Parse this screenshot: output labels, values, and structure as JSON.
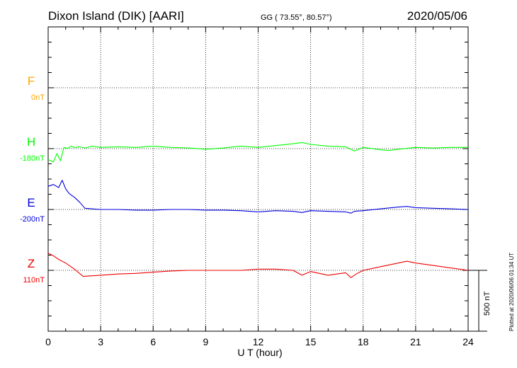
{
  "header": {
    "station": "Dixon Island (DIK)  [AARI]",
    "coords": "GG ( 73.55°,  80.57°)",
    "date": "2020/05/06"
  },
  "side_note": "Plotted at 2020/06/06 01:34 UT",
  "scale_bar_label": "500 nT",
  "chart_data": {
    "type": "line",
    "xlabel": "U T (hour)",
    "ylabel": "",
    "xlim": [
      0,
      24
    ],
    "x_ticks": [
      0,
      3,
      6,
      9,
      12,
      15,
      18,
      21,
      24
    ],
    "x_tick_labels": [
      "0",
      "3",
      "6",
      "9",
      "12",
      "15",
      "18",
      "21",
      "24"
    ],
    "grid": true,
    "scale_nT": 500,
    "series": [
      {
        "name": "F",
        "baseline_label": "0nT",
        "color": "#ffa500",
        "x": [],
        "y": []
      },
      {
        "name": "H",
        "baseline_label": "-180nT",
        "color": "#00ff00",
        "x": [
          0,
          0.3,
          0.5,
          0.7,
          0.9,
          1.1,
          1.3,
          1.5,
          1.8,
          2.1,
          2.5,
          3,
          4,
          5,
          6,
          7,
          8,
          9,
          10,
          11,
          12,
          13,
          14,
          14.5,
          15,
          16,
          17,
          17.5,
          18,
          19,
          19.5,
          20,
          21,
          22,
          23,
          24
        ],
        "y": [
          -90,
          -110,
          -40,
          -100,
          10,
          0,
          20,
          10,
          15,
          5,
          20,
          10,
          15,
          10,
          20,
          10,
          5,
          -5,
          5,
          20,
          10,
          25,
          40,
          50,
          35,
          20,
          15,
          -20,
          10,
          -10,
          -15,
          -5,
          10,
          5,
          10,
          10
        ]
      },
      {
        "name": "E",
        "baseline_label": "-200nT",
        "color": "#0000dd",
        "x": [
          0,
          0.3,
          0.6,
          0.8,
          1.0,
          1.2,
          1.5,
          1.8,
          2.1,
          2.5,
          3,
          4,
          5,
          6,
          7,
          8,
          9,
          10,
          11,
          12,
          13,
          14,
          14.5,
          15,
          16,
          17,
          17.3,
          17.5,
          18,
          19,
          20,
          20.5,
          21,
          22,
          23,
          24
        ],
        "y": [
          190,
          205,
          180,
          240,
          170,
          130,
          100,
          60,
          10,
          5,
          0,
          0,
          -5,
          -5,
          0,
          0,
          -5,
          -5,
          -10,
          -20,
          -10,
          -15,
          -25,
          -10,
          -15,
          -20,
          -30,
          -15,
          -10,
          5,
          20,
          25,
          15,
          10,
          5,
          0
        ]
      },
      {
        "name": "Z",
        "baseline_label": "110nT",
        "color": "#ee0000",
        "x": [
          0,
          0.3,
          0.6,
          1.0,
          1.5,
          2.0,
          2.5,
          3,
          4,
          5,
          6,
          7,
          8,
          9,
          10,
          11,
          12,
          13,
          14,
          14.5,
          15,
          16,
          17,
          17.3,
          17.6,
          18,
          19,
          20,
          20.5,
          21,
          22,
          23,
          24
        ],
        "y": [
          140,
          120,
          90,
          60,
          10,
          -50,
          -45,
          -40,
          -30,
          -25,
          -15,
          -5,
          0,
          0,
          0,
          0,
          10,
          10,
          0,
          -40,
          -10,
          -40,
          -20,
          -60,
          -30,
          0,
          30,
          60,
          75,
          60,
          40,
          20,
          0
        ]
      }
    ]
  }
}
